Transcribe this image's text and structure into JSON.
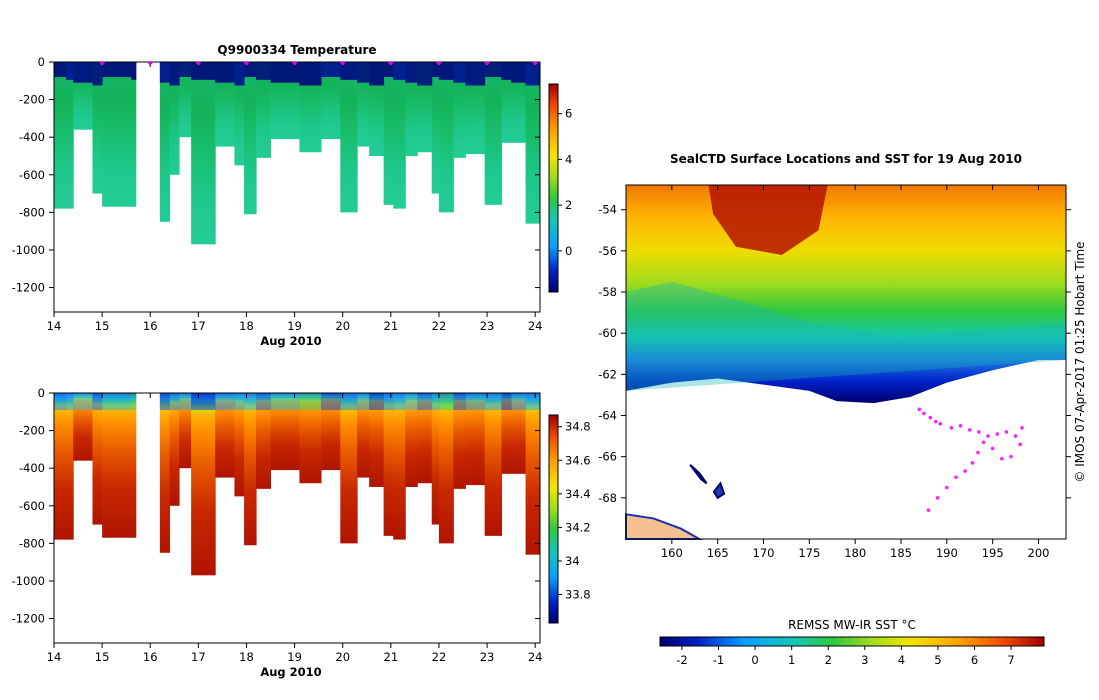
{
  "chart_data": [
    {
      "type": "heatmap",
      "title": "Q9900334  Temperature",
      "xlabel": "Aug 2010",
      "ylabel": "",
      "xlim": [
        14,
        24.1
      ],
      "ylim": [
        -1330,
        0
      ],
      "x_ticks": [
        "14",
        "15",
        "16",
        "17",
        "18",
        "19",
        "20",
        "21",
        "22",
        "23",
        "24"
      ],
      "y_ticks": [
        "0",
        "-200",
        "-400",
        "-600",
        "-800",
        "-1000",
        "-1200"
      ],
      "colorbar": {
        "ticks": [
          "-0",
          "2",
          "4",
          "6"
        ],
        "ticks_display": [
          "0",
          "2",
          "4",
          "6"
        ],
        "range": [
          -1.8,
          7.3
        ]
      },
      "profile_markers_x": [
        15,
        16,
        17,
        18,
        19,
        20,
        21,
        22,
        23,
        24
      ],
      "profile_max_depths": [
        [
          14.0,
          -780
        ],
        [
          14.25,
          -780
        ],
        [
          14.4,
          -360
        ],
        [
          14.8,
          -700
        ],
        [
          15.0,
          -770
        ],
        [
          15.6,
          -770
        ],
        [
          16.2,
          -850
        ],
        [
          16.4,
          -600
        ],
        [
          16.6,
          -400
        ],
        [
          16.85,
          -970
        ],
        [
          17.35,
          -450
        ],
        [
          17.75,
          -550
        ],
        [
          17.95,
          -810
        ],
        [
          18.2,
          -510
        ],
        [
          18.5,
          -410
        ],
        [
          19.1,
          -480
        ],
        [
          19.55,
          -410
        ],
        [
          19.95,
          -800
        ],
        [
          20.3,
          -450
        ],
        [
          20.55,
          -500
        ],
        [
          20.85,
          -760
        ],
        [
          21.05,
          -780
        ],
        [
          21.3,
          -500
        ],
        [
          21.55,
          -480
        ],
        [
          21.85,
          -700
        ],
        [
          22.0,
          -800
        ],
        [
          22.3,
          -510
        ],
        [
          22.55,
          -490
        ],
        [
          22.95,
          -760
        ],
        [
          23.3,
          -430
        ],
        [
          23.5,
          -430
        ],
        [
          23.8,
          -860
        ],
        [
          24.1,
          -860
        ]
      ],
      "gap": [
        15.7,
        16.15
      ]
    },
    {
      "type": "heatmap",
      "title": "",
      "xlabel": "Aug 2010",
      "ylabel": "",
      "xlim": [
        14,
        24.1
      ],
      "ylim": [
        -1330,
        0
      ],
      "x_ticks": [
        "14",
        "15",
        "16",
        "17",
        "18",
        "19",
        "20",
        "21",
        "22",
        "23",
        "24"
      ],
      "y_ticks": [
        "0",
        "-200",
        "-400",
        "-600",
        "-800",
        "-1000",
        "-1200"
      ],
      "colorbar": {
        "ticks_display": [
          "33.8",
          "34",
          "34.2",
          "34.4",
          "34.6",
          "34.8"
        ],
        "range": [
          33.63,
          34.87
        ]
      },
      "gap": [
        15.7,
        16.15
      ]
    },
    {
      "type": "heatmap",
      "title": "SealCTD Surface Locations and SST for 19 Aug 2010",
      "xlabel": "",
      "ylabel": "",
      "xlim": [
        155,
        203
      ],
      "ylim": [
        -70,
        -52.8
      ],
      "x_ticks": [
        "160",
        "165",
        "170",
        "175",
        "180",
        "185",
        "190",
        "195",
        "200"
      ],
      "y_ticks": [
        "-54",
        "-56",
        "-58",
        "-60",
        "-62",
        "-64",
        "-66",
        "-68"
      ],
      "colorbar": {
        "label": "REMSS MW-IR SST °C",
        "ticks_display": [
          "-2",
          "-1",
          "0",
          "1",
          "2",
          "3",
          "4",
          "5",
          "6",
          "7"
        ],
        "range": [
          -2.6,
          7.9
        ]
      },
      "track_points": [
        [
          187.0,
          -63.7
        ],
        [
          187.5,
          -63.9
        ],
        [
          188.2,
          -64.1
        ],
        [
          188.8,
          -64.3
        ],
        [
          189.3,
          -64.4
        ],
        [
          190.5,
          -64.6
        ],
        [
          191.5,
          -64.5
        ],
        [
          192.5,
          -64.7
        ],
        [
          193.5,
          -64.8
        ],
        [
          194.5,
          -65.0
        ],
        [
          195.5,
          -64.9
        ],
        [
          196.5,
          -64.8
        ],
        [
          197.5,
          -65.0
        ],
        [
          198.2,
          -64.6
        ],
        [
          198.0,
          -65.4
        ],
        [
          197.0,
          -66.0
        ],
        [
          196.0,
          -66.1
        ],
        [
          195.0,
          -65.6
        ],
        [
          194.0,
          -65.3
        ],
        [
          193.4,
          -65.8
        ],
        [
          192.8,
          -66.3
        ],
        [
          192.0,
          -66.7
        ],
        [
          191.0,
          -67.0
        ],
        [
          190.0,
          -67.5
        ],
        [
          189.0,
          -68.0
        ],
        [
          188.0,
          -68.6
        ]
      ],
      "side_label": "© IMOS 07-Apr-2017 01:25 Hobart Time"
    }
  ]
}
